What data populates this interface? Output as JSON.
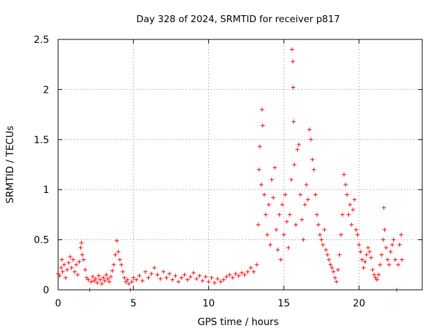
{
  "chart_data": {
    "type": "scatter",
    "title": "Day 328 of 2024, SRMTID for receiver p817",
    "xlabel": "GPS time / hours",
    "ylabel": "SRMTID / TECUs",
    "xlim": [
      0,
      24.2
    ],
    "ylim": [
      0,
      2.5
    ],
    "x_ticks": [
      0,
      5,
      10,
      15,
      20
    ],
    "x_tick_labels": [
      "0",
      "5",
      "10",
      "15",
      "20"
    ],
    "y_ticks": [
      0,
      0.5,
      1,
      1.5,
      2,
      2.5
    ],
    "y_tick_labels": [
      "0",
      "0.5",
      "1",
      "1.5",
      "2",
      "2.5"
    ],
    "grid": true,
    "marker": "+",
    "color": "#ff0000",
    "series": [
      {
        "name": "SRMTID",
        "points": [
          [
            0.0,
            0.16
          ],
          [
            0.1,
            0.14
          ],
          [
            0.2,
            0.22
          ],
          [
            0.25,
            0.3
          ],
          [
            0.3,
            0.18
          ],
          [
            0.4,
            0.25
          ],
          [
            0.5,
            0.12
          ],
          [
            0.6,
            0.2
          ],
          [
            0.7,
            0.27
          ],
          [
            0.8,
            0.33
          ],
          [
            0.9,
            0.22
          ],
          [
            1.0,
            0.3
          ],
          [
            1.1,
            0.18
          ],
          [
            1.2,
            0.25
          ],
          [
            1.3,
            0.15
          ],
          [
            1.4,
            0.28
          ],
          [
            1.5,
            0.42
          ],
          [
            1.55,
            0.47
          ],
          [
            1.6,
            0.35
          ],
          [
            1.7,
            0.3
          ],
          [
            1.8,
            0.2
          ],
          [
            1.9,
            0.12
          ],
          [
            2.0,
            0.1
          ],
          [
            2.1,
            0.0
          ],
          [
            2.2,
            0.08
          ],
          [
            2.3,
            0.13
          ],
          [
            2.4,
            0.09
          ],
          [
            2.5,
            0.11
          ],
          [
            2.6,
            0.07
          ],
          [
            2.7,
            0.14
          ],
          [
            2.8,
            0.1
          ],
          [
            2.9,
            0.06
          ],
          [
            3.0,
            0.12
          ],
          [
            3.1,
            0.09
          ],
          [
            3.2,
            0.15
          ],
          [
            3.3,
            0.11
          ],
          [
            3.4,
            0.08
          ],
          [
            3.5,
            0.13
          ],
          [
            3.6,
            0.19
          ],
          [
            3.7,
            0.25
          ],
          [
            3.8,
            0.35
          ],
          [
            3.9,
            0.49
          ],
          [
            4.0,
            0.38
          ],
          [
            4.1,
            0.3
          ],
          [
            4.2,
            0.25
          ],
          [
            4.3,
            0.18
          ],
          [
            4.4,
            0.12
          ],
          [
            4.5,
            0.08
          ],
          [
            4.6,
            0.1
          ],
          [
            4.7,
            0.06
          ],
          [
            4.8,
            0.0
          ],
          [
            4.9,
            0.08
          ],
          [
            5.0,
            0.12
          ],
          [
            5.2,
            0.1
          ],
          [
            5.4,
            0.14
          ],
          [
            5.6,
            0.09
          ],
          [
            5.8,
            0.18
          ],
          [
            6.0,
            0.12
          ],
          [
            6.2,
            0.16
          ],
          [
            6.4,
            0.22
          ],
          [
            6.6,
            0.15
          ],
          [
            6.8,
            0.11
          ],
          [
            7.0,
            0.18
          ],
          [
            7.2,
            0.12
          ],
          [
            7.4,
            0.16
          ],
          [
            7.6,
            0.1
          ],
          [
            7.8,
            0.14
          ],
          [
            8.0,
            0.08
          ],
          [
            8.2,
            0.12
          ],
          [
            8.4,
            0.15
          ],
          [
            8.6,
            0.1
          ],
          [
            8.8,
            0.13
          ],
          [
            9.0,
            0.17
          ],
          [
            9.2,
            0.11
          ],
          [
            9.4,
            0.14
          ],
          [
            9.6,
            0.09
          ],
          [
            9.8,
            0.13
          ],
          [
            10.0,
            0.08
          ],
          [
            10.2,
            0.12
          ],
          [
            10.4,
            0.07
          ],
          [
            10.6,
            0.11
          ],
          [
            10.8,
            0.08
          ],
          [
            11.0,
            0.1
          ],
          [
            11.2,
            0.13
          ],
          [
            11.4,
            0.15
          ],
          [
            11.6,
            0.12
          ],
          [
            11.8,
            0.16
          ],
          [
            12.0,
            0.14
          ],
          [
            12.2,
            0.17
          ],
          [
            12.4,
            0.15
          ],
          [
            12.6,
            0.18
          ],
          [
            12.8,
            0.22
          ],
          [
            13.0,
            0.18
          ],
          [
            13.2,
            0.25
          ],
          [
            13.3,
            0.65
          ],
          [
            13.35,
            1.2
          ],
          [
            13.4,
            1.43
          ],
          [
            13.5,
            1.05
          ],
          [
            13.55,
            1.8
          ],
          [
            13.6,
            1.64
          ],
          [
            13.7,
            0.95
          ],
          [
            13.8,
            0.75
          ],
          [
            13.9,
            0.55
          ],
          [
            14.0,
            0.85
          ],
          [
            14.1,
            0.45
          ],
          [
            14.2,
            1.1
          ],
          [
            14.3,
            0.92
          ],
          [
            14.4,
            1.22
          ],
          [
            14.5,
            0.6
          ],
          [
            14.6,
            0.4
          ],
          [
            14.7,
            0.75
          ],
          [
            14.8,
            0.3
          ],
          [
            14.9,
            0.85
          ],
          [
            15.0,
            0.55
          ],
          [
            15.1,
            0.95
          ],
          [
            15.2,
            0.68
          ],
          [
            15.3,
            0.42
          ],
          [
            15.4,
            0.75
          ],
          [
            15.5,
            1.1
          ],
          [
            15.55,
            2.4
          ],
          [
            15.6,
            2.28
          ],
          [
            15.62,
            2.02
          ],
          [
            15.65,
            1.68
          ],
          [
            15.7,
            1.25
          ],
          [
            15.8,
            0.65
          ],
          [
            15.9,
            1.4
          ],
          [
            16.0,
            1.45
          ],
          [
            16.1,
            0.95
          ],
          [
            16.2,
            0.7
          ],
          [
            16.3,
            0.5
          ],
          [
            16.4,
            0.85
          ],
          [
            16.5,
            1.05
          ],
          [
            16.6,
            0.9
          ],
          [
            16.7,
            1.6
          ],
          [
            16.8,
            1.5
          ],
          [
            16.9,
            1.3
          ],
          [
            17.0,
            1.2
          ],
          [
            17.1,
            0.95
          ],
          [
            17.2,
            0.75
          ],
          [
            17.3,
            0.65
          ],
          [
            17.4,
            0.55
          ],
          [
            17.5,
            0.5
          ],
          [
            17.6,
            0.45
          ],
          [
            17.7,
            0.6
          ],
          [
            17.8,
            0.4
          ],
          [
            17.9,
            0.35
          ],
          [
            18.0,
            0.3
          ],
          [
            18.1,
            0.25
          ],
          [
            18.2,
            0.22
          ],
          [
            18.3,
            0.18
          ],
          [
            18.4,
            0.12
          ],
          [
            18.5,
            0.08
          ],
          [
            18.6,
            0.2
          ],
          [
            18.7,
            0.35
          ],
          [
            18.8,
            0.55
          ],
          [
            18.9,
            0.75
          ],
          [
            19.0,
            1.15
          ],
          [
            19.1,
            1.05
          ],
          [
            19.2,
            0.95
          ],
          [
            19.3,
            0.75
          ],
          [
            19.4,
            0.85
          ],
          [
            19.5,
            0.65
          ],
          [
            19.6,
            0.8
          ],
          [
            19.7,
            0.9
          ],
          [
            19.8,
            0.6
          ],
          [
            19.9,
            0.55
          ],
          [
            20.0,
            0.45
          ],
          [
            20.1,
            0.38
          ],
          [
            20.2,
            0.3
          ],
          [
            20.3,
            0.22
          ],
          [
            20.4,
            0.28
          ],
          [
            20.5,
            0.35
          ],
          [
            20.6,
            0.42
          ],
          [
            20.7,
            0.38
          ],
          [
            20.8,
            0.32
          ],
          [
            20.9,
            0.2
          ],
          [
            21.0,
            0.15
          ],
          [
            21.1,
            0.12
          ],
          [
            21.2,
            0.1
          ],
          [
            21.3,
            0.15
          ],
          [
            21.4,
            0.25
          ],
          [
            21.5,
            0.35
          ],
          [
            21.6,
            0.5
          ],
          [
            21.65,
            0.82
          ],
          [
            21.7,
            0.6
          ],
          [
            21.8,
            0.42
          ],
          [
            21.9,
            0.3
          ],
          [
            22.0,
            0.25
          ],
          [
            22.1,
            0.38
          ],
          [
            22.2,
            0.45
          ],
          [
            22.3,
            0.5
          ],
          [
            22.4,
            0.3
          ],
          [
            22.5,
            0.0
          ],
          [
            22.6,
            0.25
          ],
          [
            22.7,
            0.45
          ],
          [
            22.8,
            0.55
          ],
          [
            22.85,
            0.3
          ]
        ]
      }
    ]
  }
}
